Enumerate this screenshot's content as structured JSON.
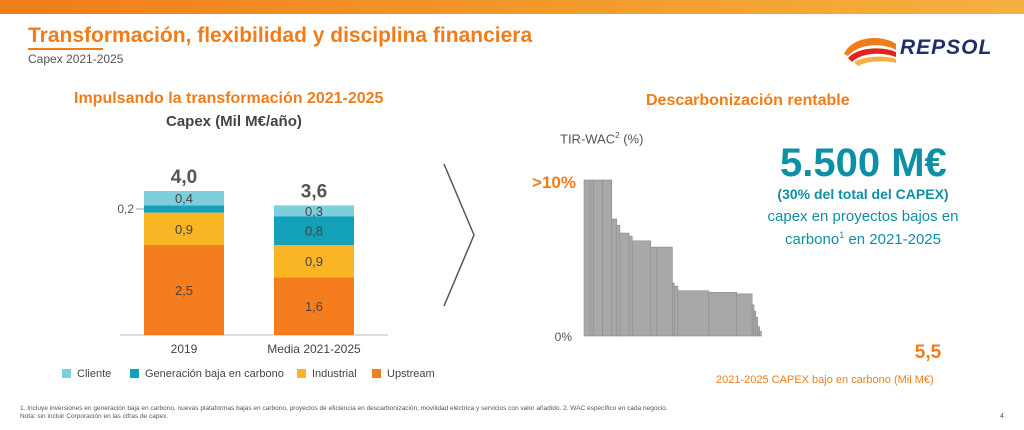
{
  "header": {
    "title": "Transformación, flexibilidad y disciplina financiera",
    "subtitle": "Capex 2021-2025",
    "logo_text": "REPSOL"
  },
  "left_section": {
    "title": "Impulsando la transformación 2021-2025",
    "subtitle": "Capex (Mil M€/año)"
  },
  "right_section": {
    "title": "Descarbonización rentable",
    "y_label_main": "TIR-WAC",
    "y_label_sup": "2",
    "y_label_unit": "(%)",
    "big_value": "5.500 M€",
    "pct_text": "(30% del total del CAPEX)",
    "desc_line1": "capex en proyectos bajos en",
    "desc_line2a": "carbono",
    "desc_line2_sup": "1",
    "desc_line2b": " en 2021-2025",
    "x_label": "2021-2025 CAPEX bajo en carbono (Mil M€)"
  },
  "legend": [
    {
      "label": "Cliente",
      "color": "#7ecfdc"
    },
    {
      "label": "Generación baja en carbono",
      "color": "#12a1b8"
    },
    {
      "label": "Industrial",
      "color": "#f9b523"
    },
    {
      "label": "Upstream",
      "color": "#f57d1e"
    }
  ],
  "footnote": {
    "line1": "1. Incluye inversiones en generación baja en carbono, nuevas plataformas bajas en carbono, proyectos de eficiencia en descarbonización, movilidad eléctrica y servicios con valor añadido. 2. WAC específico en cada negocio.",
    "line2": "Nota: sin incluir Corporación en las cifras de capex."
  },
  "page_number": "4",
  "chart_data": [
    {
      "type": "bar",
      "stacked": true,
      "title": "Capex (Mil M€/año)",
      "categories": [
        "2019",
        "Media 2021-2025"
      ],
      "totals": [
        "4,0",
        "3,6"
      ],
      "series": [
        {
          "name": "Upstream",
          "color": "#f57d1e",
          "values": [
            2.5,
            1.6
          ],
          "labels": [
            "2,5",
            "1,6"
          ]
        },
        {
          "name": "Industrial",
          "color": "#f9b523",
          "values": [
            0.9,
            0.9
          ],
          "labels": [
            "0,9",
            "0,9"
          ]
        },
        {
          "name": "Generación baja en carbono",
          "color": "#12a1b8",
          "values": [
            0.2,
            0.8
          ],
          "labels": [
            "0,2",
            "0,8"
          ]
        },
        {
          "name": "Cliente",
          "color": "#7ecfdc",
          "values": [
            0.4,
            0.3
          ],
          "labels": [
            "0,4",
            "0,3"
          ]
        }
      ],
      "outside_labels": [
        {
          "category_index": 0,
          "series": "Generación baja en carbono",
          "text": "0,2"
        }
      ],
      "ylim": [
        0,
        4.0
      ]
    },
    {
      "type": "bar",
      "variant": "marimekko-step",
      "title": "Descarbonización rentable",
      "xlabel": "2021-2025 CAPEX bajo en carbono (Mil M€)",
      "ylabel": "TIR-WAC (%)",
      "y_tick_labels": [
        ">10%",
        "0%"
      ],
      "x_end_label": "5,5",
      "x_total": 5.5,
      "ylim": [
        0,
        10
      ],
      "color": "#a8a8a8",
      "bars": [
        {
          "width": 0.1,
          "value": 10
        },
        {
          "width": 0.05,
          "value": 10
        },
        {
          "width": 0.15,
          "value": 10
        },
        {
          "width": 0.15,
          "value": 10
        },
        {
          "width": 0.08,
          "value": 7.5
        },
        {
          "width": 0.05,
          "value": 7.1
        },
        {
          "width": 0.15,
          "value": 6.6
        },
        {
          "width": 0.05,
          "value": 6.4
        },
        {
          "width": 0.3,
          "value": 6.1
        },
        {
          "width": 0.1,
          "value": 5.7
        },
        {
          "width": 0.25,
          "value": 5.7
        },
        {
          "width": 0.03,
          "value": 3.4
        },
        {
          "width": 0.06,
          "value": 3.2
        },
        {
          "width": 0.5,
          "value": 2.9
        },
        {
          "width": 0.45,
          "value": 2.8
        },
        {
          "width": 0.25,
          "value": 2.7
        },
        {
          "width": 0.03,
          "value": 2.0
        },
        {
          "width": 0.03,
          "value": 1.6
        },
        {
          "width": 0.03,
          "value": 1.2
        },
        {
          "width": 0.03,
          "value": 0.6
        },
        {
          "width": 0.03,
          "value": 0.3
        }
      ]
    }
  ]
}
